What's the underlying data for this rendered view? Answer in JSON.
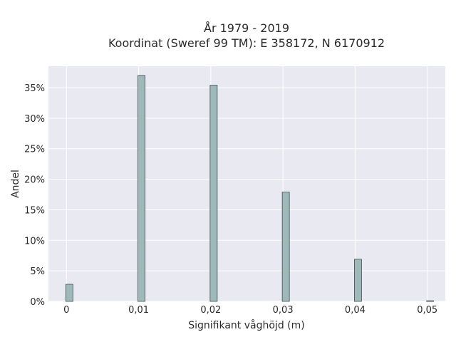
{
  "chart_data": {
    "type": "bar",
    "title": "År 1979 - 2019",
    "subtitle": "Koordinat (Sweref 99 TM): E 358172, N 6170912",
    "xlabel": "Signifikant våghöjd (m)",
    "ylabel": "Andel",
    "x": [
      0,
      0.01,
      0.02,
      0.03,
      0.04,
      0.05
    ],
    "values": [
      2.8,
      37.0,
      35.4,
      17.9,
      6.9,
      0.1
    ],
    "xticks": [
      "0",
      "0,01",
      "0,02",
      "0,03",
      "0,04",
      "0,05"
    ],
    "yticks": [
      "0%",
      "5%",
      "10%",
      "15%",
      "20%",
      "25%",
      "30%",
      "35%"
    ],
    "ylim": [
      0,
      38.5
    ],
    "xlim": [
      -0.0025,
      0.0525
    ],
    "grid": true,
    "legend": "none",
    "colors": {
      "bar": "#9fb8b9",
      "bar_edge": "#3d4f4f",
      "plot_bg": "#e9e9f1",
      "grid": "#ffffff"
    }
  }
}
